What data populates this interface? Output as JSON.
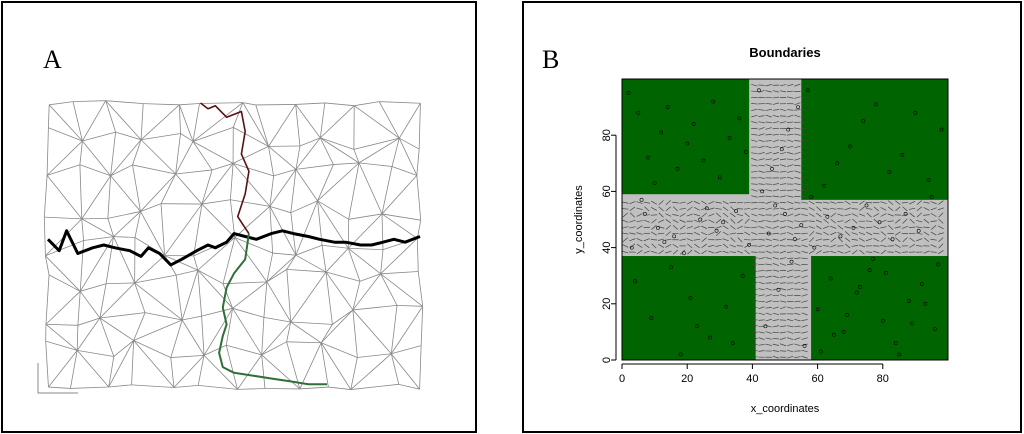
{
  "panels": {
    "a": {
      "letter": "A"
    },
    "b": {
      "letter": "B"
    }
  },
  "colors": {
    "background": "#ffffff",
    "mesh": "#888888",
    "boundary_black": "#000000",
    "boundary_red": "#5a1010",
    "boundary_green": "#2f6f3a",
    "region_green": "#006400",
    "region_gray": "#c0c0c0",
    "vector": "#444444",
    "points": "#000000"
  },
  "chart_data": [
    {
      "panel": "A",
      "type": "line",
      "description_kind": "triangulated mesh with boundary paths",
      "mesh_extent": {
        "x": [
          0,
          100
        ],
        "y": [
          0,
          100
        ]
      },
      "series": [
        {
          "x": [
            0,
            3,
            5,
            8,
            12,
            15,
            18,
            22,
            25,
            27,
            30,
            33,
            36,
            40,
            43,
            45,
            48,
            50,
            53,
            56,
            60,
            63,
            66,
            70,
            73,
            77,
            80,
            84,
            87,
            90,
            93,
            96,
            100
          ],
          "y": [
            52,
            48,
            55,
            47,
            49,
            50,
            49,
            48,
            46,
            49,
            47,
            43,
            45,
            48,
            50,
            49,
            51,
            54,
            53,
            52,
            54,
            55,
            54,
            53,
            52,
            51,
            51,
            50,
            50,
            51,
            52,
            51,
            53
          ]
        },
        {
          "x": [
            41,
            43,
            45,
            48,
            52,
            53,
            52,
            54,
            53,
            51,
            52,
            54
          ],
          "y": [
            100,
            98,
            99,
            95,
            97,
            90,
            82,
            76,
            68,
            60,
            58,
            54
          ]
        },
        {
          "x": [
            54,
            53,
            50,
            48,
            47,
            48,
            47,
            46,
            47,
            50,
            55,
            60,
            65,
            70,
            75
          ],
          "y": [
            54,
            45,
            40,
            35,
            28,
            22,
            18,
            12,
            7,
            5,
            4,
            3,
            2,
            1,
            1
          ]
        }
      ]
    },
    {
      "panel": "B",
      "type": "scatter",
      "title": "Boundaries",
      "xlabel": "x_coordinates",
      "ylabel": "y_coordinates",
      "xlim": [
        0,
        100
      ],
      "ylim": [
        0,
        100
      ],
      "xticks": [
        0,
        20,
        40,
        60,
        80
      ],
      "yticks": [
        0,
        20,
        40,
        60,
        80
      ],
      "regions": [
        {
          "quadrant": "bottom-left",
          "x": [
            0,
            41
          ],
          "y": [
            0,
            37
          ]
        },
        {
          "quadrant": "bottom-right",
          "x": [
            58,
            100
          ],
          "y": [
            0,
            37
          ]
        },
        {
          "quadrant": "top-left",
          "x": [
            0,
            39
          ],
          "y": [
            59,
            100
          ]
        },
        {
          "quadrant": "top-right",
          "x": [
            55,
            100
          ],
          "y": [
            57,
            100
          ]
        }
      ],
      "points": {
        "x": [
          2,
          5,
          8,
          10,
          12,
          14,
          17,
          20,
          22,
          25,
          28,
          30,
          33,
          36,
          38,
          4,
          9,
          15,
          21,
          27,
          32,
          37,
          44,
          48,
          52,
          56,
          60,
          64,
          68,
          72,
          76,
          80,
          84,
          88,
          92,
          96,
          45,
          50,
          55,
          47,
          53,
          58,
          62,
          66,
          70,
          74,
          78,
          82,
          86,
          90,
          94,
          98,
          3,
          7,
          11,
          16,
          24,
          29,
          35,
          43,
          46,
          49,
          51,
          54,
          57,
          61,
          65,
          69,
          73,
          77,
          81,
          85,
          89,
          93,
          97,
          6,
          13,
          19,
          26,
          31,
          39,
          42,
          59,
          63,
          67,
          71,
          75,
          79,
          83,
          87,
          91,
          95,
          18,
          23,
          34
        ],
        "y": [
          95,
          88,
          72,
          63,
          81,
          90,
          68,
          77,
          84,
          71,
          92,
          65,
          79,
          86,
          74,
          28,
          15,
          33,
          22,
          8,
          19,
          30,
          12,
          25,
          35,
          5,
          18,
          29,
          10,
          24,
          32,
          14,
          6,
          21,
          27,
          11,
          45,
          52,
          48,
          55,
          43,
          58,
          62,
          70,
          76,
          85,
          91,
          67,
          73,
          88,
          64,
          82,
          40,
          52,
          47,
          44,
          50,
          46,
          53,
          60,
          68,
          75,
          82,
          90,
          96,
          3,
          9,
          16,
          26,
          36,
          31,
          2,
          13,
          20,
          34,
          57,
          42,
          38,
          54,
          49,
          41,
          96,
          40,
          51,
          44,
          47,
          55,
          49,
          43,
          52,
          46,
          58,
          2,
          12,
          6
        ]
      }
    }
  ]
}
